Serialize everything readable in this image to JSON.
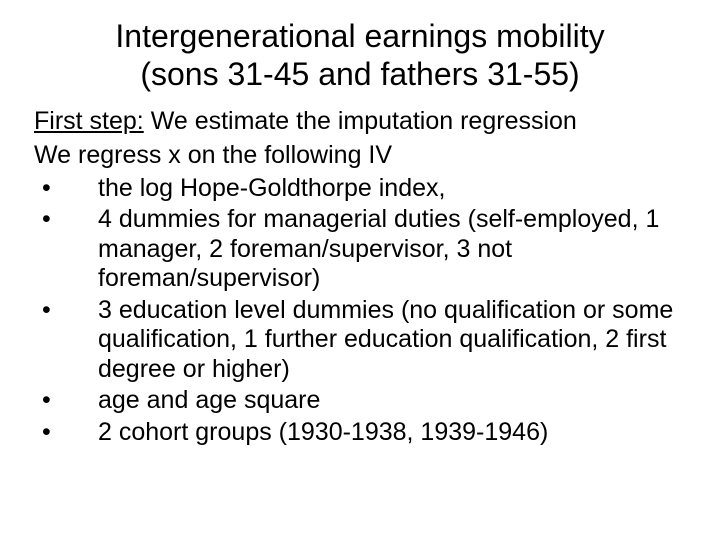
{
  "title_line1": "Intergenerational earnings mobility",
  "title_line2": "(sons 31-45 and fathers 31-55)",
  "intro": {
    "label": "First step:",
    "rest": " We estimate the imputation regression",
    "line2": "We regress x on the following  IV"
  },
  "bullets": [
    "the log Hope-Goldthorpe index,",
    "4 dummies for managerial duties (self-employed, 1 manager, 2 foreman/supervisor, 3 not foreman/supervisor)",
    "3 education level dummies (no qualification or some qualification, 1 further education qualification, 2 first degree or higher)",
    "age and age square",
    "2 cohort groups (1930-1938, 1939-1946)"
  ],
  "bullet_char": "•"
}
